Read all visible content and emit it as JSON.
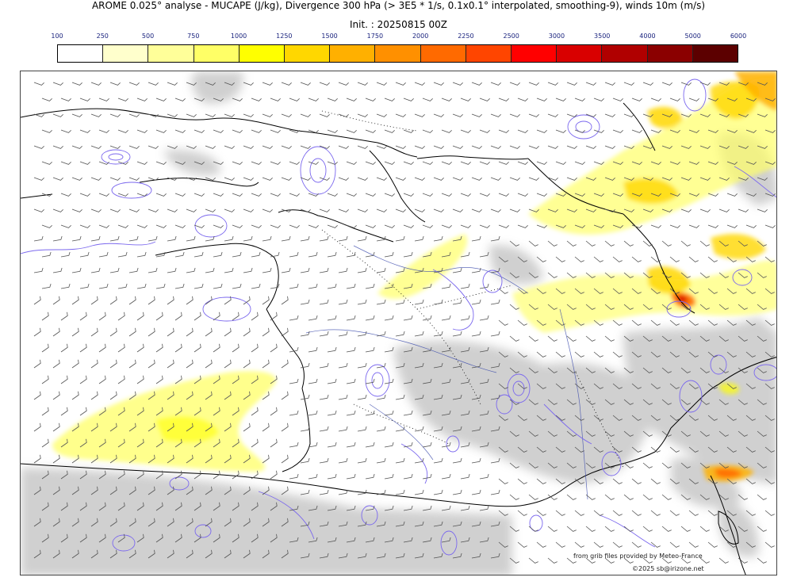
{
  "header": {
    "title": "AROME 0.025° analyse - MUCAPE (J/kg), Divergence 300 hPa (> 3E5 * 1/s, 0.1x0.1° interpolated, smoothing-9), winds 10m (m/s)",
    "init": "Init. : 20250815 00Z"
  },
  "colorbar": {
    "labels": [
      "100",
      "250",
      "500",
      "750",
      "1000",
      "1250",
      "1500",
      "1750",
      "2000",
      "2250",
      "2500",
      "3000",
      "3500",
      "4000",
      "5000",
      "6000"
    ],
    "colors": [
      "#ffffff",
      "#ffffcc",
      "#ffff99",
      "#ffff66",
      "#ffff00",
      "#ffd700",
      "#ffb000",
      "#ff9000",
      "#ff6a00",
      "#ff4500",
      "#ff0000",
      "#d90000",
      "#b00000",
      "#8b0000",
      "#5c0000"
    ]
  },
  "map": {
    "land_outline_color": "#000000",
    "divergence_contour_color": "#7b68ee",
    "terrain_shade_color": "#c8c8c8",
    "wind_barb_color": "#555555"
  },
  "credits": {
    "line1": "from grib files provided by Meteo-France",
    "line2": "©2025 sb@irizone.net"
  }
}
